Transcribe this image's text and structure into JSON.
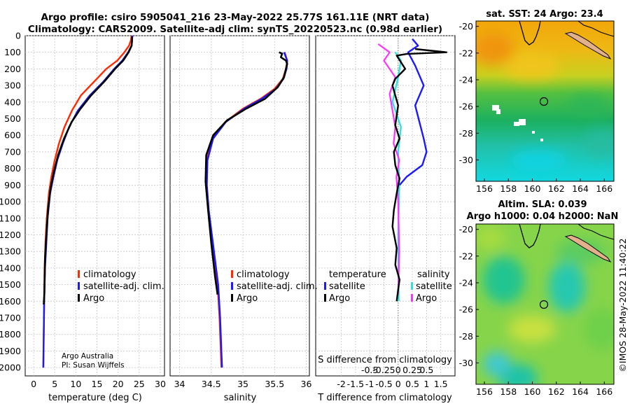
{
  "title": {
    "line1": "Argo profile: csiro 5905041_216 23-May-2022 25.77S 161.11E (NRT data)",
    "line2": "Climatology: CARS2009. Satellite-adj clim: synTS_20220523.nc (0.98d earlier)"
  },
  "credit": {
    "org": "Argo Australia",
    "pi": "PI: Susan Wijffels"
  },
  "footer_stamp": "©IMOS 28-May-2022 11:40:22",
  "colors": {
    "climatology": "#ff2a00",
    "satellite": "#1a1aff",
    "argo": "#000000",
    "temp_sat": "#1a1aff",
    "sal_sat": "#33e0e0",
    "sal_argo": "#ff33ff"
  },
  "chart_data": [
    {
      "type": "line",
      "id": "temperature",
      "xlabel": "temperature (deg C)",
      "ylabel": "",
      "xlim": [
        -2,
        31
      ],
      "ylim": [
        2050,
        0
      ],
      "xticks": [
        0,
        5,
        10,
        15,
        20,
        25,
        30
      ],
      "yticks": [
        0,
        100,
        200,
        300,
        400,
        500,
        600,
        700,
        800,
        900,
        1000,
        1100,
        1200,
        1300,
        1400,
        1500,
        1600,
        1700,
        1800,
        1900,
        2000
      ],
      "legend": [
        "climatology",
        "satellite-adj. clim.",
        "Argo"
      ],
      "series": [
        {
          "name": "climatology",
          "x": [
            23.2,
            23.0,
            22.6,
            21.5,
            19.8,
            17.2,
            14.2,
            11.2,
            9.1,
            7.3,
            6.0,
            5.0,
            4.2,
            3.6,
            3.1,
            2.8,
            2.6,
            2.5,
            2.4,
            2.3
          ],
          "y": [
            0,
            30,
            60,
            100,
            150,
            200,
            280,
            360,
            450,
            550,
            650,
            750,
            850,
            950,
            1100,
            1250,
            1400,
            1600,
            1800,
            2000
          ]
        },
        {
          "name": "satellite-adj. clim.",
          "x": [
            23.4,
            23.3,
            23.2,
            22.4,
            21.0,
            19.1,
            16.4,
            13.3,
            10.5,
            8.4,
            6.9,
            5.6,
            4.7,
            3.9,
            3.3,
            3.0,
            2.7,
            2.5,
            2.4,
            2.3
          ],
          "y": [
            0,
            30,
            60,
            100,
            150,
            200,
            280,
            360,
            450,
            550,
            650,
            750,
            850,
            950,
            1100,
            1250,
            1400,
            1600,
            1800,
            2000
          ]
        },
        {
          "name": "Argo",
          "x": [
            23.3,
            23.3,
            23.2,
            22.5,
            21.2,
            19.3,
            16.6,
            13.6,
            11.1,
            9.0,
            7.2,
            5.8,
            4.8,
            4.0,
            3.4,
            3.0,
            2.7,
            2.55,
            2.4
          ],
          "y": [
            5,
            30,
            60,
            100,
            150,
            200,
            280,
            360,
            440,
            520,
            620,
            720,
            820,
            920,
            1050,
            1200,
            1350,
            1550,
            1620
          ]
        }
      ]
    },
    {
      "type": "line",
      "id": "salinity",
      "xlabel": "salinity",
      "ylabel": "",
      "xlim": [
        33.85,
        36.05
      ],
      "ylim": [
        2050,
        0
      ],
      "xticks": [
        34,
        34.5,
        35,
        35.5,
        36
      ],
      "legend": [
        "climatology",
        "satellite-adj. clim.",
        "Argo"
      ],
      "series": [
        {
          "name": "climatology",
          "x": [
            35.66,
            35.7,
            35.68,
            35.63,
            35.5,
            35.28,
            35.0,
            34.72,
            34.52,
            34.43,
            34.42,
            34.45,
            34.5,
            34.55,
            34.6,
            34.63,
            34.66
          ],
          "y": [
            100,
            150,
            200,
            260,
            320,
            380,
            440,
            520,
            620,
            750,
            900,
            1050,
            1200,
            1350,
            1500,
            1700,
            2000
          ]
        },
        {
          "name": "satellite-adj. clim.",
          "x": [
            35.65,
            35.7,
            35.69,
            35.64,
            35.52,
            35.3,
            35.02,
            34.73,
            34.53,
            34.44,
            34.43,
            34.46,
            34.51,
            34.56,
            34.61,
            34.64,
            34.67
          ],
          "y": [
            100,
            150,
            200,
            260,
            320,
            380,
            440,
            520,
            620,
            750,
            900,
            1050,
            1200,
            1350,
            1500,
            1700,
            2000
          ]
        },
        {
          "name": "Argo",
          "x": [
            35.57,
            35.62,
            35.6,
            35.68,
            35.7,
            35.68,
            35.65,
            35.55,
            35.35,
            35.05,
            34.75,
            34.53,
            34.42,
            34.41,
            34.45,
            34.5,
            34.56,
            34.6
          ],
          "y": [
            100,
            108,
            130,
            150,
            170,
            200,
            250,
            310,
            380,
            440,
            510,
            600,
            720,
            880,
            1050,
            1250,
            1450,
            1560
          ]
        }
      ]
    },
    {
      "type": "line",
      "id": "differences",
      "xlabel": "T difference from climatology",
      "xlabel_top": "S difference from climatology",
      "xlim": [
        -2.9,
        2.0
      ],
      "ylim": [
        2050,
        0
      ],
      "xticks": [
        -2,
        -1.5,
        -1,
        -0.5,
        0,
        0.5,
        1,
        1.5
      ],
      "xticks_s": [
        "-0.5",
        "-0.25",
        "0",
        "0.25",
        "0.5"
      ],
      "legend_temp_title": "temperature",
      "legend_sal_title": "salinity",
      "legend": [
        "satellite",
        "Argo"
      ],
      "series": [
        {
          "name": "T satellite",
          "x": [
            0.5,
            0.7,
            0.35,
            0.6,
            0.9,
            0.6,
            0.75,
            0.9,
            1.0,
            0.85,
            0.3,
            0.05
          ],
          "y": [
            20,
            60,
            100,
            180,
            300,
            420,
            520,
            620,
            700,
            780,
            850,
            900
          ]
        },
        {
          "name": "T Argo",
          "x": [
            0.6,
            1.7,
            0.3,
            -0.05,
            0.25,
            -0.1,
            -0.2,
            -0.1,
            0.0,
            -0.05,
            -0.1,
            0.05,
            -0.15,
            -0.1,
            0.05,
            -0.05,
            -0.15,
            -0.2,
            -0.05,
            -0.1,
            0.05,
            0.0,
            -0.05
          ],
          "y": [
            80,
            100,
            110,
            120,
            200,
            260,
            300,
            360,
            420,
            480,
            540,
            620,
            700,
            780,
            860,
            950,
            1050,
            1150,
            1280,
            1380,
            1470,
            1530,
            1600
          ]
        },
        {
          "name": "S satellite",
          "x": [
            -0.05,
            0.05,
            0.0,
            -0.1,
            0.05,
            0.0,
            0.02,
            0.0,
            0.01
          ],
          "y": [
            100,
            150,
            250,
            400,
            550,
            700,
            900,
            1200,
            1600
          ]
        },
        {
          "name": "S Argo",
          "x": [
            -0.35,
            -0.15,
            -0.25,
            -0.05,
            -0.15,
            -0.1,
            -0.05,
            -0.08,
            0.02,
            -0.03,
            0.0,
            0.02,
            0.0
          ],
          "y": [
            50,
            100,
            150,
            250,
            350,
            450,
            550,
            650,
            750,
            850,
            1000,
            1300,
            1560
          ]
        }
      ]
    },
    {
      "type": "heatmap",
      "id": "sst_map",
      "title": "sat. SST: 24 Argo: 23.4",
      "xticks": [
        "156",
        "158",
        "160",
        "162",
        "164",
        "166"
      ],
      "yticks": [
        "-20",
        "-22",
        "-24",
        "-26",
        "-28",
        "-30"
      ],
      "xlim": [
        155.3,
        166.8
      ],
      "ylim": [
        -31.6,
        -19.6
      ],
      "float_position": {
        "lon": 161.11,
        "lat": -25.77
      }
    },
    {
      "type": "heatmap",
      "id": "sla_map",
      "title": "Altim. SLA: 0.039",
      "subtitle": "Argo h1000: 0.04 h2000: NaN",
      "xticks": [
        "156",
        "158",
        "160",
        "162",
        "164",
        "166"
      ],
      "yticks": [
        "-20",
        "-22",
        "-24",
        "-26",
        "-28",
        "-30"
      ],
      "xlim": [
        155.3,
        166.8
      ],
      "ylim": [
        -31.6,
        -19.6
      ],
      "float_position": {
        "lon": 161.11,
        "lat": -25.77
      }
    }
  ]
}
